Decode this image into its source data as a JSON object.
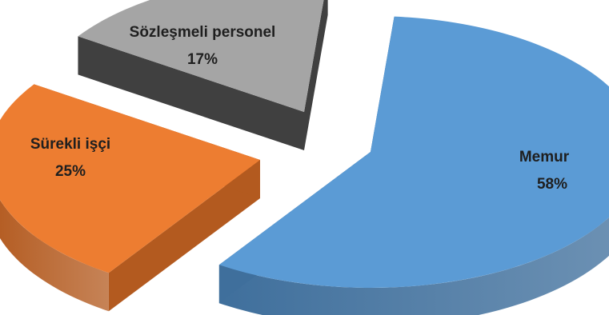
{
  "chart_data": {
    "type": "pie",
    "style": "3d-exploded",
    "title": "",
    "legend": "none",
    "slices": [
      {
        "label": "Memur",
        "percent_label": "58%",
        "value": 58,
        "color": "#5b9bd5",
        "side_color": "#3f6f9c"
      },
      {
        "label": "Sürekli işçi",
        "percent_label": "25%",
        "value": 25,
        "color": "#ed7d31",
        "side_color": "#b35a1f"
      },
      {
        "label": "Sözleşmeli personel",
        "percent_label": "17%",
        "value": 17,
        "color": "#a5a5a5",
        "side_color": "#404040"
      }
    ]
  }
}
